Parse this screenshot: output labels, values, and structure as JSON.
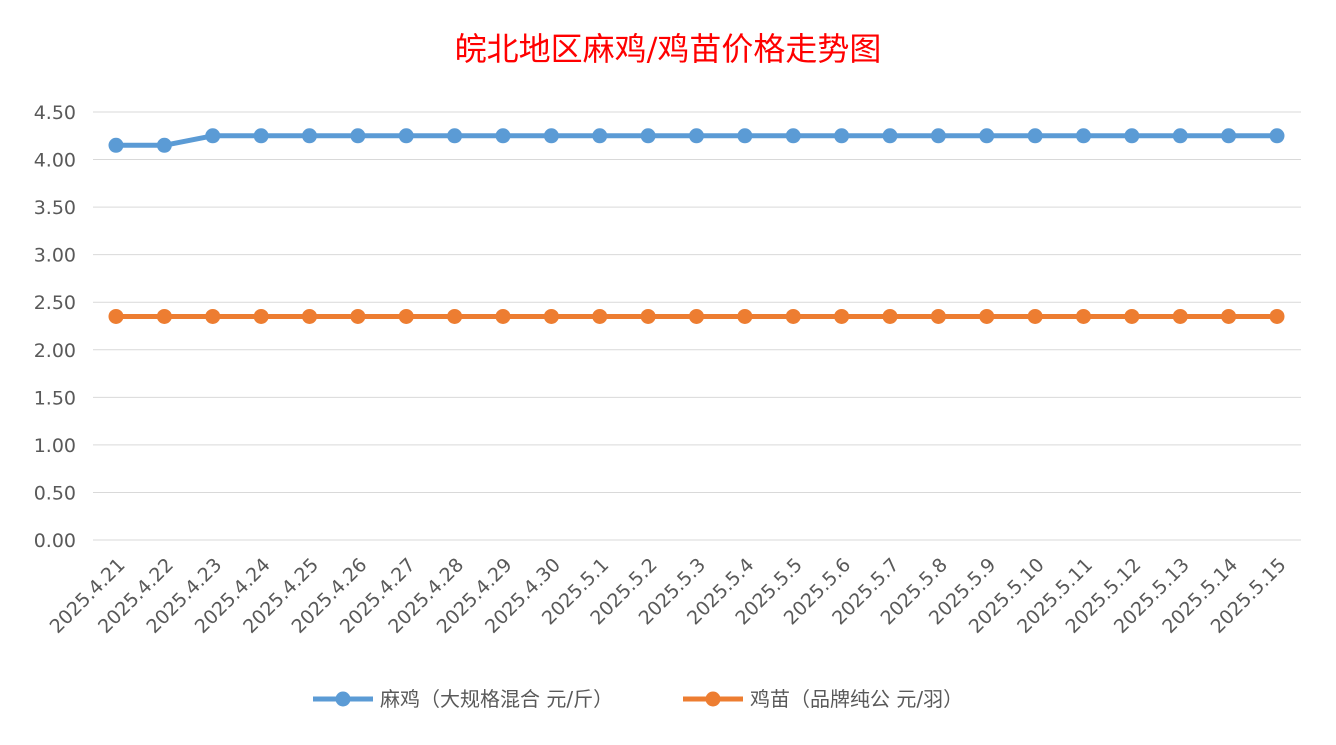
{
  "chart_data": {
    "type": "line",
    "title": "皖北地区麻鸡/鸡苗价格走势图",
    "xlabel": "",
    "ylabel": "",
    "ylim": [
      0,
      4.5
    ],
    "ytick_step": 0.5,
    "yticks": [
      "0.00",
      "0.50",
      "1.00",
      "1.50",
      "2.00",
      "2.50",
      "3.00",
      "3.50",
      "4.00",
      "4.50"
    ],
    "grid": true,
    "legend_position": "bottom",
    "categories": [
      "2025.4.21",
      "2025.4.22",
      "2025.4.23",
      "2025.4.24",
      "2025.4.25",
      "2025.4.26",
      "2025.4.27",
      "2025.4.28",
      "2025.4.29",
      "2025.4.30",
      "2025.5.1",
      "2025.5.2",
      "2025.5.3",
      "2025.5.4",
      "2025.5.5",
      "2025.5.6",
      "2025.5.7",
      "2025.5.8",
      "2025.5.9",
      "2025.5.10",
      "2025.5.11",
      "2025.5.12",
      "2025.5.13",
      "2025.5.14",
      "2025.5.15"
    ],
    "series": [
      {
        "name": "麻鸡（大规格混合 元/斤）",
        "color": "#5b9bd5",
        "values": [
          4.15,
          4.15,
          4.25,
          4.25,
          4.25,
          4.25,
          4.25,
          4.25,
          4.25,
          4.25,
          4.25,
          4.25,
          4.25,
          4.25,
          4.25,
          4.25,
          4.25,
          4.25,
          4.25,
          4.25,
          4.25,
          4.25,
          4.25,
          4.25,
          4.25
        ]
      },
      {
        "name": "鸡苗（品牌纯公 元/羽）",
        "color": "#ed7d31",
        "values": [
          2.35,
          2.35,
          2.35,
          2.35,
          2.35,
          2.35,
          2.35,
          2.35,
          2.35,
          2.35,
          2.35,
          2.35,
          2.35,
          2.35,
          2.35,
          2.35,
          2.35,
          2.35,
          2.35,
          2.35,
          2.35,
          2.35,
          2.35,
          2.35,
          2.35
        ]
      }
    ]
  }
}
